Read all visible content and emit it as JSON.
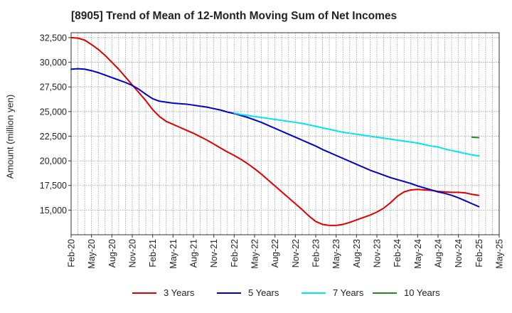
{
  "chart_data": {
    "type": "line",
    "title": "[8905]  Trend of Mean of 12-Month Moving Sum of Net Incomes",
    "ylabel": "Amount (million yen)",
    "xlabel": "",
    "ylim": [
      12500,
      33000
    ],
    "y_ticks": [
      15000,
      17500,
      20000,
      22500,
      25000,
      27500,
      30000,
      32500
    ],
    "y_tick_labels": [
      "15,000",
      "17,500",
      "20,000",
      "22,500",
      "25,000",
      "27,500",
      "30,000",
      "32,500"
    ],
    "x_ticks": [
      "Feb-20",
      "May-20",
      "Aug-20",
      "Nov-20",
      "Feb-21",
      "May-21",
      "Aug-21",
      "Nov-21",
      "Feb-22",
      "May-22",
      "Aug-22",
      "Nov-22",
      "Feb-23",
      "May-23",
      "Aug-23",
      "Nov-23",
      "Feb-24",
      "May-24",
      "Aug-24",
      "Nov-24",
      "Feb-25",
      "May-25"
    ],
    "grid": true,
    "legend_position": "bottom",
    "series": [
      {
        "name": "3 Years",
        "color": "#e00000",
        "points": [
          [
            "Feb-20",
            32500
          ],
          [
            "Mar-20",
            32450
          ],
          [
            "Apr-20",
            32250
          ],
          [
            "May-20",
            31800
          ],
          [
            "Jun-20",
            31300
          ],
          [
            "Jul-20",
            30700
          ],
          [
            "Aug-20",
            30000
          ],
          [
            "Sep-20",
            29300
          ],
          [
            "Oct-20",
            28500
          ],
          [
            "Nov-20",
            27700
          ],
          [
            "Dec-20",
            26900
          ],
          [
            "Jan-21",
            26100
          ],
          [
            "Feb-21",
            25200
          ],
          [
            "Mar-21",
            24500
          ],
          [
            "Apr-21",
            24000
          ],
          [
            "May-21",
            23700
          ],
          [
            "Jun-21",
            23400
          ],
          [
            "Jul-21",
            23100
          ],
          [
            "Aug-21",
            22800
          ],
          [
            "Sep-21",
            22450
          ],
          [
            "Oct-21",
            22100
          ],
          [
            "Nov-21",
            21700
          ],
          [
            "Dec-21",
            21300
          ],
          [
            "Jan-22",
            20900
          ],
          [
            "Feb-22",
            20550
          ],
          [
            "Mar-22",
            20150
          ],
          [
            "Apr-22",
            19700
          ],
          [
            "May-22",
            19200
          ],
          [
            "Jun-22",
            18650
          ],
          [
            "Jul-22",
            18050
          ],
          [
            "Aug-22",
            17450
          ],
          [
            "Sep-22",
            16850
          ],
          [
            "Oct-22",
            16250
          ],
          [
            "Nov-22",
            15650
          ],
          [
            "Dec-22",
            15050
          ],
          [
            "Jan-23",
            14400
          ],
          [
            "Feb-23",
            13850
          ],
          [
            "Mar-23",
            13550
          ],
          [
            "Apr-23",
            13450
          ],
          [
            "May-23",
            13450
          ],
          [
            "Jun-23",
            13550
          ],
          [
            "Jul-23",
            13750
          ],
          [
            "Aug-23",
            14000
          ],
          [
            "Sep-23",
            14250
          ],
          [
            "Oct-23",
            14500
          ],
          [
            "Nov-23",
            14800
          ],
          [
            "Dec-23",
            15200
          ],
          [
            "Jan-24",
            15750
          ],
          [
            "Feb-24",
            16400
          ],
          [
            "Mar-24",
            16850
          ],
          [
            "Apr-24",
            17050
          ],
          [
            "May-24",
            17100
          ],
          [
            "Jun-24",
            17050
          ],
          [
            "Jul-24",
            17000
          ],
          [
            "Aug-24",
            16900
          ],
          [
            "Sep-24",
            16850
          ],
          [
            "Oct-24",
            16800
          ],
          [
            "Nov-24",
            16800
          ],
          [
            "Dec-24",
            16750
          ],
          [
            "Jan-25",
            16600
          ],
          [
            "Feb-25",
            16500
          ]
        ]
      },
      {
        "name": "5 Years",
        "color": "#0000cc",
        "points": [
          [
            "Feb-20",
            29300
          ],
          [
            "Mar-20",
            29350
          ],
          [
            "Apr-20",
            29300
          ],
          [
            "May-20",
            29150
          ],
          [
            "Jun-20",
            28950
          ],
          [
            "Jul-20",
            28700
          ],
          [
            "Aug-20",
            28450
          ],
          [
            "Sep-20",
            28200
          ],
          [
            "Oct-20",
            27950
          ],
          [
            "Nov-20",
            27650
          ],
          [
            "Dec-20",
            27250
          ],
          [
            "Jan-21",
            26750
          ],
          [
            "Feb-21",
            26300
          ],
          [
            "Mar-21",
            26050
          ],
          [
            "Apr-21",
            25950
          ],
          [
            "May-21",
            25850
          ],
          [
            "Jun-21",
            25800
          ],
          [
            "Jul-21",
            25750
          ],
          [
            "Aug-21",
            25650
          ],
          [
            "Sep-21",
            25550
          ],
          [
            "Oct-21",
            25450
          ],
          [
            "Nov-21",
            25300
          ],
          [
            "Dec-21",
            25150
          ],
          [
            "Jan-22",
            24950
          ],
          [
            "Feb-22",
            24800
          ],
          [
            "Mar-22",
            24600
          ],
          [
            "Apr-22",
            24400
          ],
          [
            "May-22",
            24150
          ],
          [
            "Jun-22",
            23900
          ],
          [
            "Jul-22",
            23600
          ],
          [
            "Aug-22",
            23300
          ],
          [
            "Sep-22",
            23000
          ],
          [
            "Oct-22",
            22700
          ],
          [
            "Nov-22",
            22400
          ],
          [
            "Dec-22",
            22100
          ],
          [
            "Jan-23",
            21800
          ],
          [
            "Feb-23",
            21500
          ],
          [
            "Mar-23",
            21150
          ],
          [
            "Apr-23",
            20850
          ],
          [
            "May-23",
            20550
          ],
          [
            "Jun-23",
            20250
          ],
          [
            "Jul-23",
            19950
          ],
          [
            "Aug-23",
            19650
          ],
          [
            "Sep-23",
            19350
          ],
          [
            "Oct-23",
            19050
          ],
          [
            "Nov-23",
            18800
          ],
          [
            "Dec-23",
            18550
          ],
          [
            "Jan-24",
            18300
          ],
          [
            "Feb-24",
            18100
          ],
          [
            "Mar-24",
            17900
          ],
          [
            "Apr-24",
            17700
          ],
          [
            "May-24",
            17450
          ],
          [
            "Jun-24",
            17250
          ],
          [
            "Jul-24",
            17050
          ],
          [
            "Aug-24",
            16850
          ],
          [
            "Sep-24",
            16700
          ],
          [
            "Oct-24",
            16500
          ],
          [
            "Nov-24",
            16250
          ],
          [
            "Dec-24",
            15950
          ],
          [
            "Jan-25",
            15650
          ],
          [
            "Feb-25",
            15350
          ]
        ]
      },
      {
        "name": "7 Years",
        "color": "#00e5ee",
        "points": [
          [
            "Feb-22",
            24850
          ],
          [
            "Mar-22",
            24700
          ],
          [
            "Apr-22",
            24600
          ],
          [
            "May-22",
            24500
          ],
          [
            "Jun-22",
            24400
          ],
          [
            "Jul-22",
            24300
          ],
          [
            "Aug-22",
            24200
          ],
          [
            "Sep-22",
            24100
          ],
          [
            "Oct-22",
            24000
          ],
          [
            "Nov-22",
            23900
          ],
          [
            "Dec-22",
            23800
          ],
          [
            "Jan-23",
            23650
          ],
          [
            "Feb-23",
            23500
          ],
          [
            "Mar-23",
            23350
          ],
          [
            "Apr-23",
            23200
          ],
          [
            "May-23",
            23050
          ],
          [
            "Jun-23",
            22900
          ],
          [
            "Jul-23",
            22800
          ],
          [
            "Aug-23",
            22700
          ],
          [
            "Sep-23",
            22600
          ],
          [
            "Oct-23",
            22500
          ],
          [
            "Nov-23",
            22400
          ],
          [
            "Dec-23",
            22300
          ],
          [
            "Jan-24",
            22200
          ],
          [
            "Feb-24",
            22100
          ],
          [
            "Mar-24",
            22000
          ],
          [
            "Apr-24",
            21900
          ],
          [
            "May-24",
            21800
          ],
          [
            "Jun-24",
            21650
          ],
          [
            "Jul-24",
            21500
          ],
          [
            "Aug-24",
            21400
          ],
          [
            "Sep-24",
            21200
          ],
          [
            "Oct-24",
            21050
          ],
          [
            "Nov-24",
            20900
          ],
          [
            "Dec-24",
            20750
          ],
          [
            "Jan-25",
            20600
          ],
          [
            "Feb-25",
            20500
          ]
        ]
      },
      {
        "name": "10 Years",
        "color": "#228b22",
        "points": [
          [
            "Jan-25",
            22400
          ],
          [
            "Feb-25",
            22350
          ]
        ]
      }
    ]
  }
}
